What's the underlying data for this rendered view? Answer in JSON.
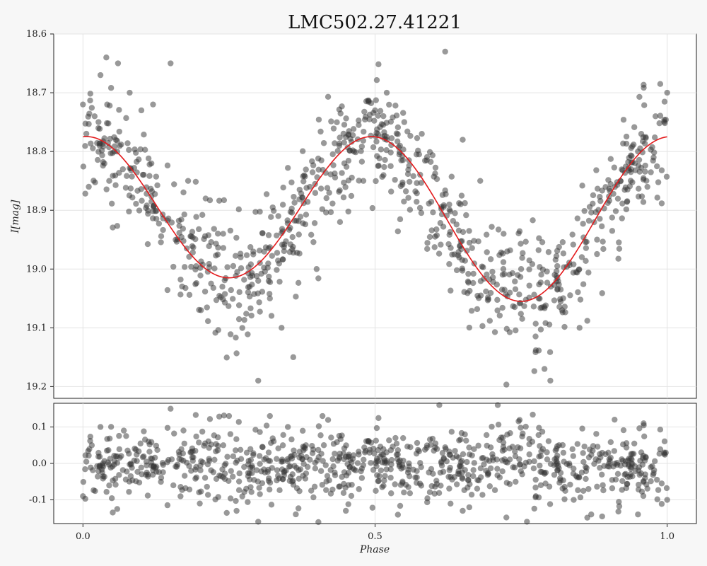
{
  "chart_data": {
    "type": "scatter",
    "title": "LMC502.27.41221",
    "xlabel": "Phase",
    "ylabel": "I[mag]",
    "xlim": [
      -0.05,
      1.05
    ],
    "xticks": [
      0.0,
      0.5,
      1.0
    ],
    "xtick_labels": [
      "0.0",
      "0.5",
      "1.0"
    ],
    "grid": true,
    "point_color": "#333333",
    "fit_color": "#e41a1c",
    "panels": [
      {
        "name": "light-curve",
        "ylim": [
          18.6,
          19.22
        ],
        "y_inverted": true,
        "yticks": [
          18.6,
          18.7,
          18.8,
          18.9,
          19.0,
          19.1,
          19.2
        ],
        "ytick_labels": [
          "18.6",
          "18.7",
          "18.8",
          "18.9",
          "19.0",
          "19.1",
          "19.2"
        ],
        "fit_model": {
          "description": "red harmonic fit line",
          "mean": 18.905,
          "harmonics": [
            {
              "order": 1,
              "cos": 0.0,
              "sin": -0.02
            },
            {
              "order": 2,
              "cos": -0.13,
              "sin": 0.0
            }
          ]
        },
        "points_sampled": [
          [
            0.0,
            18.72
          ],
          [
            0.01,
            18.86
          ],
          [
            0.02,
            18.74
          ],
          [
            0.03,
            18.67
          ],
          [
            0.04,
            18.64
          ],
          [
            0.06,
            18.65
          ],
          [
            0.08,
            18.7
          ],
          [
            0.1,
            18.73
          ],
          [
            0.12,
            18.72
          ],
          [
            0.15,
            18.65
          ],
          [
            0.18,
            18.85
          ],
          [
            0.21,
            18.88
          ],
          [
            0.24,
            18.94
          ],
          [
            0.27,
            18.98
          ],
          [
            0.3,
            19.02
          ],
          [
            0.3,
            19.19
          ],
          [
            0.32,
            19.05
          ],
          [
            0.34,
            19.1
          ],
          [
            0.36,
            19.15
          ],
          [
            0.4,
            19.0
          ],
          [
            0.44,
            18.92
          ],
          [
            0.48,
            18.85
          ],
          [
            0.5,
            18.73
          ],
          [
            0.52,
            18.7
          ],
          [
            0.55,
            18.75
          ],
          [
            0.58,
            18.77
          ],
          [
            0.62,
            18.63
          ],
          [
            0.65,
            18.78
          ],
          [
            0.68,
            18.85
          ],
          [
            0.72,
            18.94
          ],
          [
            0.75,
            19.0
          ],
          [
            0.78,
            19.05
          ],
          [
            0.79,
            19.17
          ],
          [
            0.8,
            19.19
          ],
          [
            0.82,
            19.07
          ],
          [
            0.85,
            19.1
          ],
          [
            0.88,
            18.95
          ],
          [
            0.92,
            18.85
          ],
          [
            0.95,
            18.8
          ],
          [
            0.98,
            18.74
          ],
          [
            1.0,
            18.7
          ]
        ],
        "point_count_estimate": 900
      },
      {
        "name": "residuals",
        "ylim": [
          -0.165,
          0.165
        ],
        "y_inverted": false,
        "yticks": [
          0.1,
          0.0,
          -0.1
        ],
        "ytick_labels": [
          "0.1",
          "0.0",
          "-0.1"
        ],
        "residual_spread": 0.05,
        "points_sampled": [
          [
            0.0,
            -0.09
          ],
          [
            0.03,
            0.1
          ],
          [
            0.07,
            0.09
          ],
          [
            0.15,
            0.15
          ],
          [
            0.2,
            -0.11
          ],
          [
            0.25,
            0.13
          ],
          [
            0.3,
            -0.16
          ],
          [
            0.32,
            0.13
          ],
          [
            0.41,
            0.13
          ],
          [
            0.45,
            -0.13
          ],
          [
            0.61,
            0.16
          ],
          [
            0.65,
            -0.13
          ],
          [
            0.71,
            0.16
          ],
          [
            0.76,
            -0.16
          ],
          [
            0.84,
            -0.1
          ],
          [
            0.87,
            -0.14
          ],
          [
            0.91,
            0.12
          ],
          [
            0.95,
            -0.14
          ],
          [
            1.0,
            -0.1
          ]
        ],
        "point_count_estimate": 900
      }
    ]
  }
}
